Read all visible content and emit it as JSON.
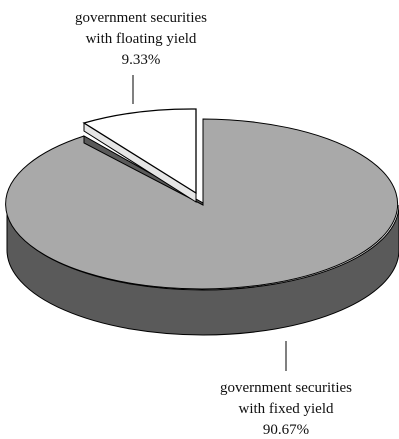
{
  "chart_data": {
    "type": "pie",
    "style": "3d-exploded",
    "slices": [
      {
        "label_lines": [
          "government securities",
          "with floating yield"
        ],
        "value": 9.33,
        "value_label": "9.33%",
        "color": "#ffffff",
        "exploded": true
      },
      {
        "label_lines": [
          "government securities",
          "with fixed yield"
        ],
        "value": 90.67,
        "value_label": "90.67%",
        "color": "#a9a9a9",
        "side_color": "#5a5a5a",
        "exploded": false
      }
    ]
  }
}
